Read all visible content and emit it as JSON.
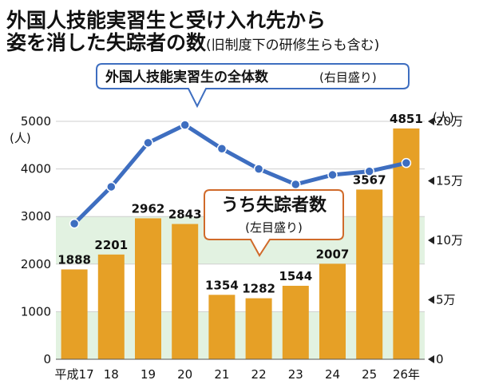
{
  "title_line1": "外国人技能実習生と受け入れ先から",
  "title_line2": "姿を消した失踪者の数",
  "title_line2_sub": "(旧制度下の研修生らも含む)",
  "left_unit": "(人)",
  "right_unit": "(人)",
  "line_label": "外国人技能実習生の全体数",
  "line_label_sub": "(右目盛り)",
  "bar_label": "うち失踪者数",
  "bar_label_sub": "(左目盛り)",
  "colors": {
    "bar": "#E6A026",
    "line": "#3E6EC0",
    "band": "#E2F2E1",
    "callout_blue": "#3E6EC0",
    "callout_orange": "#D06A2A"
  },
  "chart_data": {
    "type": "bar",
    "categories": [
      "平成17",
      "18",
      "19",
      "20",
      "21",
      "22",
      "23",
      "24",
      "25",
      "26年"
    ],
    "series": [
      {
        "name": "うち失踪者数",
        "axis": "left",
        "type": "bar",
        "values": [
          1888,
          2201,
          2962,
          2843,
          1354,
          1282,
          1544,
          2007,
          3567,
          4851
        ]
      },
      {
        "name": "外国人技能実習生の全体数",
        "axis": "right",
        "type": "line",
        "values": [
          114000,
          145000,
          182000,
          197000,
          177000,
          160000,
          147000,
          155000,
          158000,
          165000
        ]
      }
    ],
    "left_axis": {
      "ylim": [
        0,
        5000
      ],
      "ticks": [
        "0",
        "1000",
        "2000",
        "3000",
        "4000",
        "5000"
      ]
    },
    "right_axis": {
      "ylim": [
        0,
        200000
      ],
      "ticks": [
        "0",
        "5万",
        "10万",
        "15万",
        "20万"
      ]
    }
  }
}
